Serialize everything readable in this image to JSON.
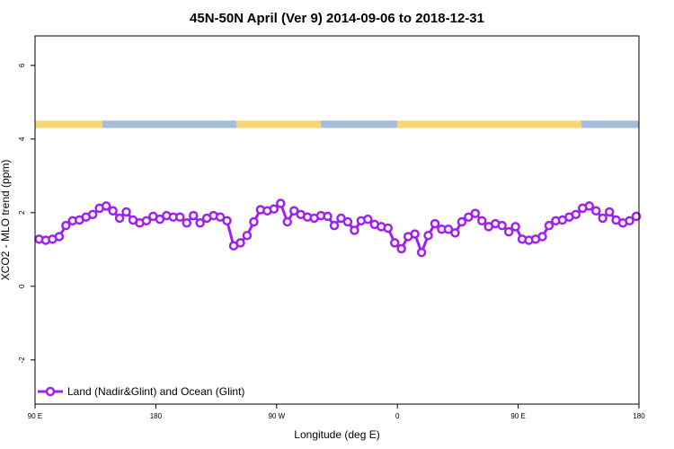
{
  "chart_data": {
    "type": "line",
    "title": "45N-50N April (Ver 9)   2014-09-06 to 2018-12-31",
    "xlabel": "Longitude (deg E)",
    "ylabel": "XCO2 - MLO trend (ppm)",
    "x_ticks": [
      {
        "value": 90,
        "label": "90 E"
      },
      {
        "value": 180,
        "label": "180"
      },
      {
        "value": 270,
        "label": "90 W"
      },
      {
        "value": 360,
        "label": "0"
      },
      {
        "value": 450,
        "label": "90 E"
      },
      {
        "value": 540,
        "label": "180"
      }
    ],
    "y_ticks": [
      {
        "value": -2,
        "label": "-2"
      },
      {
        "value": 0,
        "label": "0"
      },
      {
        "value": 2,
        "label": "2"
      },
      {
        "value": 4,
        "label": "4"
      },
      {
        "value": 6,
        "label": "6"
      }
    ],
    "xlim": [
      90,
      540
    ],
    "ylim": [
      -3.2,
      6.8
    ],
    "series": [
      {
        "name": "Land (Nadir&Glint) and Ocean (Glint)",
        "color": "#a020f0",
        "x": [
          93,
          98,
          103,
          108,
          113,
          118,
          123,
          128,
          133,
          138,
          143,
          148,
          153,
          158,
          163,
          168,
          173,
          178,
          183,
          188,
          193,
          198,
          203,
          208,
          213,
          218,
          223,
          228,
          233,
          238,
          243,
          248,
          253,
          258,
          263,
          268,
          273,
          278,
          283,
          288,
          293,
          298,
          303,
          308,
          313,
          318,
          323,
          328,
          333,
          338,
          343,
          348,
          353,
          358,
          363,
          368,
          373,
          378,
          383,
          388,
          393,
          398,
          403,
          408,
          413,
          418,
          423,
          428,
          433,
          438,
          443,
          448,
          453,
          458,
          463,
          468,
          473,
          478,
          483,
          488,
          493,
          498,
          503,
          508,
          513,
          518,
          523,
          528,
          533,
          538
        ],
        "y": [
          1.28,
          1.25,
          1.28,
          1.35,
          1.65,
          1.78,
          1.8,
          1.88,
          1.95,
          2.12,
          2.18,
          2.05,
          1.85,
          2.02,
          1.8,
          1.72,
          1.78,
          1.9,
          1.82,
          1.92,
          1.88,
          1.88,
          1.72,
          1.92,
          1.72,
          1.85,
          1.92,
          1.88,
          1.78,
          1.1,
          1.18,
          1.38,
          1.75,
          2.08,
          2.05,
          2.1,
          2.25,
          1.75,
          2.05,
          1.95,
          1.88,
          1.85,
          1.92,
          1.9,
          1.65,
          1.85,
          1.75,
          1.52,
          1.78,
          1.82,
          1.68,
          1.62,
          1.58,
          1.18,
          1.02,
          1.35,
          1.42,
          0.92,
          1.38,
          1.7,
          1.55,
          1.55,
          1.45,
          1.75,
          1.88,
          1.98,
          1.78,
          1.62,
          1.7,
          1.65,
          1.48,
          1.62,
          1.28,
          1.25,
          1.28,
          1.35,
          1.65,
          1.78,
          1.8,
          1.88,
          1.95,
          2.12,
          2.18,
          2.05,
          1.85,
          2.02,
          1.8,
          1.72,
          1.78,
          1.9
        ]
      }
    ],
    "land_ocean_strip": {
      "y_range": [
        4.3,
        4.5
      ],
      "land_color": "#f6d776",
      "ocean_color": "#a6bbd8",
      "segments": [
        {
          "from": 90,
          "to": 140,
          "type": "land"
        },
        {
          "from": 140,
          "to": 240,
          "type": "ocean"
        },
        {
          "from": 240,
          "to": 303,
          "type": "land"
        },
        {
          "from": 303,
          "to": 360,
          "type": "ocean"
        },
        {
          "from": 360,
          "to": 497,
          "type": "land"
        },
        {
          "from": 497,
          "to": 540,
          "type": "ocean"
        }
      ]
    },
    "legend_position": "bottom-left",
    "grid": false
  }
}
